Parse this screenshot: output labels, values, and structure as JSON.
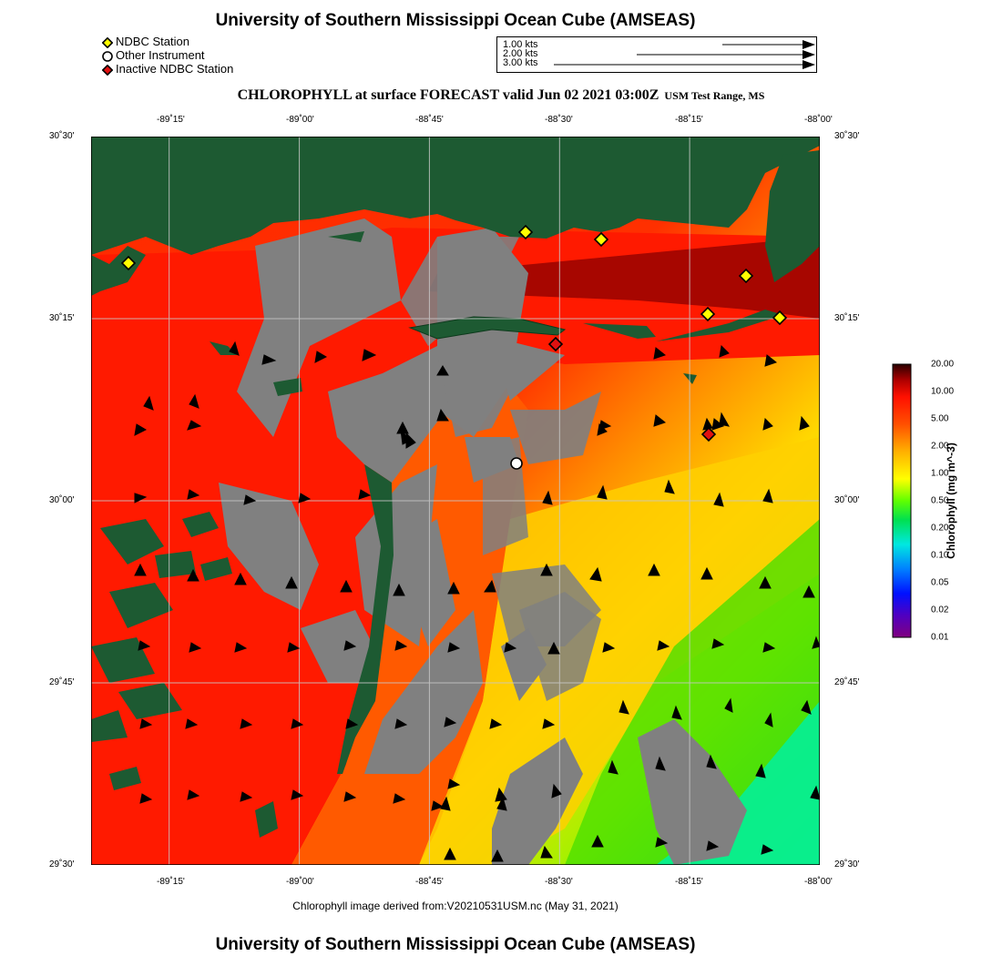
{
  "header": {
    "title": "University of Southern Mississippi Ocean Cube (AMSEAS)",
    "product_title": "CHLOROPHYLL at surface FORECAST valid Jun 02 2021 03:00Z",
    "region": "USM Test Range, MS"
  },
  "legend": [
    {
      "label": "NDBC Station",
      "symbol": "diamond",
      "color": "#ffff00"
    },
    {
      "label": "Other Instrument",
      "symbol": "circle",
      "color": "#ffffff"
    },
    {
      "label": "Inactive NDBC Station",
      "symbol": "diamond",
      "color": "#e01010"
    }
  ],
  "vector_key": [
    {
      "label": "1.00 kts",
      "speed": 1.0
    },
    {
      "label": "2.00 kts",
      "speed": 2.0
    },
    {
      "label": "3.00 kts",
      "speed": 3.0
    }
  ],
  "axes": {
    "lon_ticks": [
      "-89˚15'",
      "-89˚00'",
      "-88˚45'",
      "-88˚30'",
      "-88˚15'",
      "-88˚00'"
    ],
    "lat_ticks": [
      "30˚30'",
      "30˚15'",
      "30˚00'",
      "29˚45'",
      "29˚30'"
    ],
    "lon_range": [
      -89.375,
      -88.0
    ],
    "lat_range": [
      29.5,
      30.5
    ]
  },
  "caption": "Chlorophyll image derived from:V20210531USM.nc (May 31, 2021)",
  "colorbar": {
    "title": "Chlorophyll (mg m^-3)",
    "ticks": [
      "20.00",
      "10.00",
      "5.00",
      "2.00",
      "1.00",
      "0.50",
      "0.20",
      "0.10",
      "0.05",
      "0.02",
      "0.01"
    ],
    "colors": [
      "#2a0000",
      "#cc0000",
      "#ff2000",
      "#ff7000",
      "#ffb000",
      "#ffff00",
      "#80ff00",
      "#00e040",
      "#00ffd0",
      "#00a0ff",
      "#0020ff",
      "#6000c0",
      "#800080"
    ]
  },
  "colors": {
    "land": "#1d5a32",
    "no_data": "#808080",
    "red_water": "#ff1a00",
    "grid": "#c8c8c8"
  },
  "stations": [
    {
      "type": "ndbc",
      "lon": -89.29,
      "lat": 30.33
    },
    {
      "type": "ndbc",
      "lon": -88.54,
      "lat": 30.37
    },
    {
      "type": "ndbc",
      "lon": -88.4,
      "lat": 30.36
    },
    {
      "type": "ndbc",
      "lon": -88.11,
      "lat": 30.31
    },
    {
      "type": "ndbc",
      "lon": -88.19,
      "lat": 30.26
    },
    {
      "type": "ndbc",
      "lon": -88.07,
      "lat": 30.25
    },
    {
      "type": "inactive",
      "lon": -88.49,
      "lat": 30.21
    },
    {
      "type": "inactive",
      "lon": -88.19,
      "lat": 30.09
    },
    {
      "type": "instrument",
      "lon": -88.57,
      "lat": 30.06
    }
  ]
}
